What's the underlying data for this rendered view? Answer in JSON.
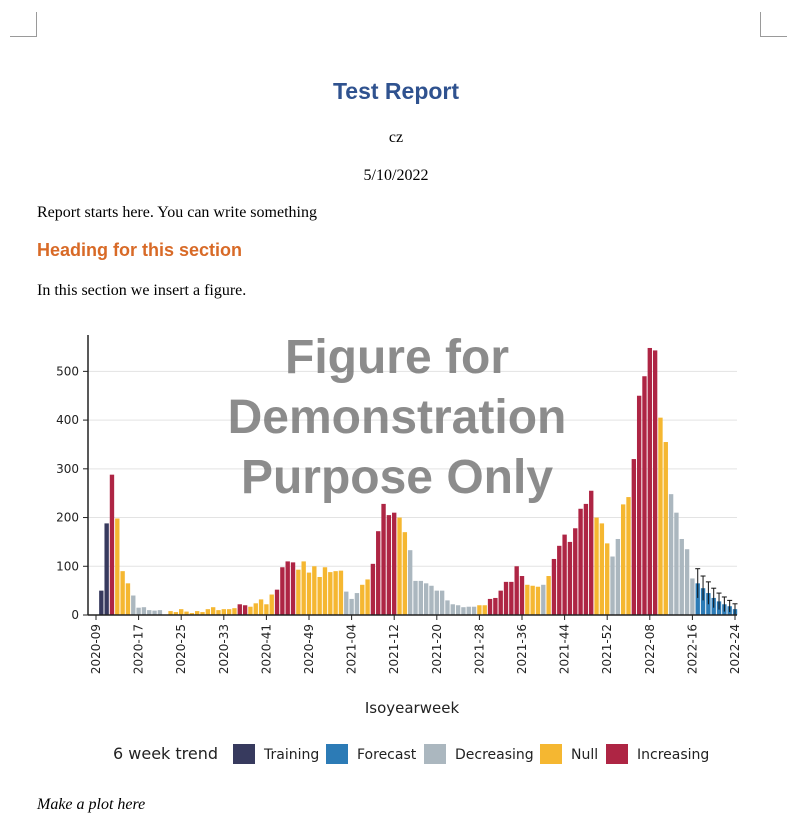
{
  "doc": {
    "title": "Test Report",
    "author": "cz",
    "date": "5/10/2022",
    "intro": "Report starts here. You can write something",
    "heading": "Heading for this section",
    "section_text": "In this section we insert a figure.",
    "caption": "Make a plot here"
  },
  "colors": {
    "Training": "#373a5e",
    "Forecast": "#2c7bb6",
    "Decreasing": "#abb7bf",
    "Null": "#f5b731",
    "Increasing": "#ae2544",
    "heading": "#d86a27",
    "title": "#2f528f"
  },
  "chart_data": {
    "type": "bar",
    "watermark": [
      "Figure for",
      "Demonstration",
      "Purpose Only"
    ],
    "xlabel": "Isoyearweek",
    "ylabel": "",
    "ylim": [
      0,
      550
    ],
    "yticks": [
      0,
      100,
      200,
      300,
      400,
      500
    ],
    "xticks": [
      "2020-09",
      "2020-17",
      "2020-25",
      "2020-33",
      "2020-41",
      "2020-49",
      "2021-04",
      "2021-12",
      "2021-20",
      "2021-28",
      "2021-36",
      "2021-44",
      "2021-52",
      "2022-08",
      "2022-16",
      "2022-24"
    ],
    "grid": "horizontal",
    "legend_position": "bottom",
    "legend": {
      "title": "6 week trend",
      "entries": [
        "Training",
        "Forecast",
        "Decreasing",
        "Null",
        "Increasing"
      ]
    },
    "first_week": "2020-09",
    "last_week": "2022-24",
    "series": [
      {
        "category": "Training",
        "start": "2020-10",
        "values": [
          50,
          188
        ]
      },
      {
        "category": "Increasing",
        "start": "2020-12",
        "values": [
          288
        ]
      },
      {
        "category": "Null",
        "start": "2020-13",
        "values": [
          198,
          90,
          65
        ]
      },
      {
        "category": "Decreasing",
        "start": "2020-16",
        "values": [
          40,
          15,
          16,
          10,
          9,
          10
        ]
      },
      {
        "category": "Null",
        "start": "2020-22",
        "values": [
          0,
          8,
          6,
          12,
          7,
          4,
          8,
          6,
          12,
          16,
          10,
          12,
          12,
          14
        ]
      },
      {
        "category": "Increasing",
        "start": "2020-36",
        "values": [
          22,
          20
        ]
      },
      {
        "category": "Null",
        "start": "2020-38",
        "values": [
          17,
          24,
          32,
          22,
          42
        ]
      },
      {
        "category": "Increasing",
        "start": "2020-43",
        "values": [
          52,
          98,
          110,
          108
        ]
      },
      {
        "category": "Null",
        "start": "2020-47",
        "values": [
          93,
          110,
          87,
          100,
          78,
          98,
          88,
          90,
          91
        ]
      },
      {
        "category": "Decreasing",
        "start": "2021-03",
        "values": [
          48,
          33,
          45
        ]
      },
      {
        "category": "Null",
        "start": "2021-06",
        "values": [
          62,
          73
        ]
      },
      {
        "category": "Increasing",
        "start": "2021-08",
        "values": [
          105,
          172,
          228,
          205,
          210
        ]
      },
      {
        "category": "Null",
        "start": "2021-13",
        "values": [
          200,
          170
        ]
      },
      {
        "category": "Decreasing",
        "start": "2021-15",
        "values": [
          133,
          70,
          70,
          65,
          60,
          50,
          50,
          30,
          22,
          20,
          16,
          17,
          17
        ]
      },
      {
        "category": "Null",
        "start": "2021-28",
        "values": [
          20,
          20
        ]
      },
      {
        "category": "Increasing",
        "start": "2021-30",
        "values": [
          33,
          35,
          50,
          68,
          68,
          100,
          80
        ]
      },
      {
        "category": "Null",
        "start": "2021-37",
        "values": [
          62,
          60,
          58
        ]
      },
      {
        "category": "Decreasing",
        "start": "2021-40",
        "values": [
          62
        ]
      },
      {
        "category": "Null",
        "start": "2021-41",
        "values": [
          80
        ]
      },
      {
        "category": "Increasing",
        "start": "2021-42",
        "values": [
          115,
          142,
          165,
          150,
          178,
          218,
          228,
          255
        ]
      },
      {
        "category": "Null",
        "start": "2021-50",
        "values": [
          200,
          188,
          147
        ]
      },
      {
        "category": "Decreasing",
        "start": "2022-01",
        "values": [
          120,
          156
        ]
      },
      {
        "category": "Null",
        "start": "2022-03",
        "values": [
          227,
          242
        ]
      },
      {
        "category": "Increasing",
        "start": "2022-05",
        "values": [
          320,
          450,
          490,
          548,
          543
        ]
      },
      {
        "category": "Null",
        "start": "2022-10",
        "values": [
          405,
          355
        ]
      },
      {
        "category": "Decreasing",
        "start": "2022-12",
        "values": [
          248,
          210,
          156,
          135,
          75
        ]
      },
      {
        "category": "Forecast",
        "start": "2022-17",
        "values": [
          65,
          55,
          45,
          35,
          28,
          22,
          18,
          12
        ]
      }
    ],
    "forecast_error_bars": {
      "start": "2022-17",
      "upper": [
        95,
        80,
        68,
        55,
        45,
        37,
        30,
        23
      ]
    }
  }
}
